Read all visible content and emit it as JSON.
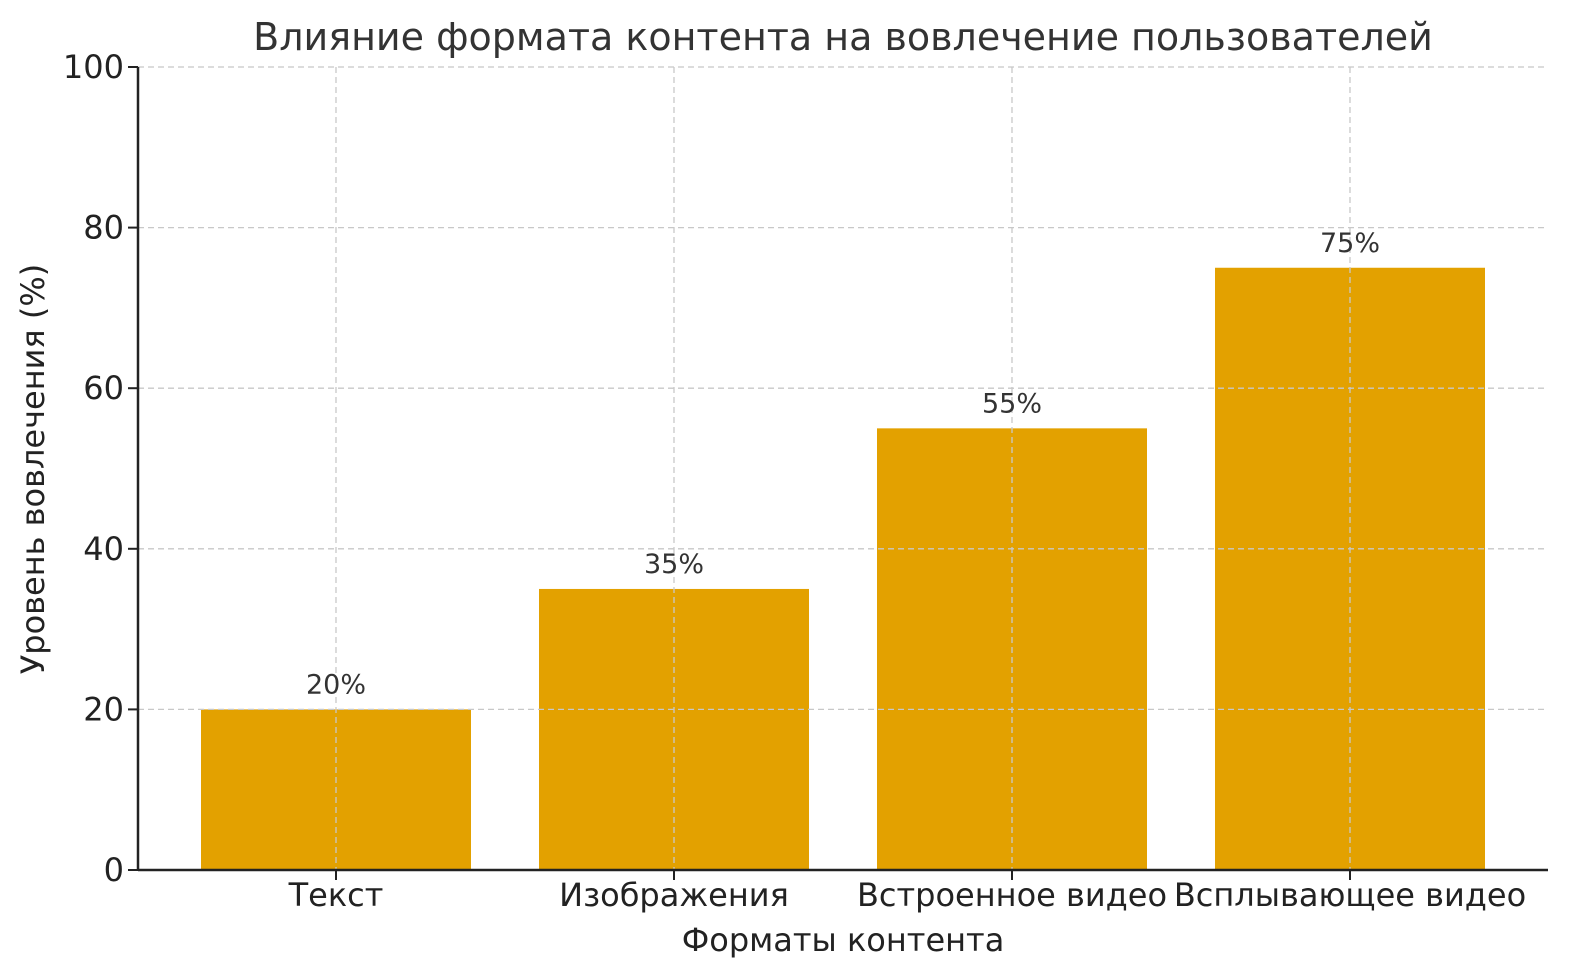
{
  "chart_data": {
    "type": "bar",
    "title": "Влияние формата контента на вовлечение пользователей",
    "xlabel": "Форматы контента",
    "ylabel": "Уровень вовлечения (%)",
    "categories": [
      "Текст",
      "Изображения",
      "Встроенное видео",
      "Всплывающее видео"
    ],
    "values": [
      20,
      35,
      55,
      75
    ],
    "value_labels": [
      "20%",
      "35%",
      "55%",
      "75%"
    ],
    "ylim": [
      0,
      100
    ],
    "yticks": [
      0,
      20,
      40,
      60,
      80,
      100
    ],
    "grid": true,
    "bar_color": "#E3A100"
  }
}
